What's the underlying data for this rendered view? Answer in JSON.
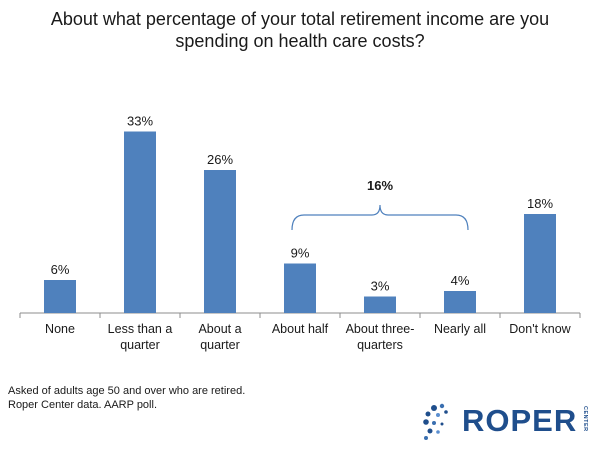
{
  "chart_data": {
    "type": "bar",
    "title": "About what percentage of your total retirement income are you spending on health care costs?",
    "categories": [
      "None",
      "Less than a quarter",
      "About a quarter",
      "About half",
      "About three-quarters",
      "Nearly all",
      "Don't know"
    ],
    "category_lines": [
      [
        "None"
      ],
      [
        "Less than a",
        "quarter"
      ],
      [
        "About a",
        "quarter"
      ],
      [
        "About half"
      ],
      [
        "About three-",
        "quarters"
      ],
      [
        "Nearly all"
      ],
      [
        "Don't know"
      ]
    ],
    "values": [
      6,
      33,
      26,
      9,
      3,
      4,
      18
    ],
    "value_labels": [
      "6%",
      "33%",
      "26%",
      "9%",
      "3%",
      "4%",
      "18%"
    ],
    "ylim": [
      0,
      40
    ],
    "grid": false,
    "bar_color": "#4f81bd",
    "group_annotation": {
      "label": "16%",
      "span": [
        "About half",
        "Nearly all"
      ]
    }
  },
  "footnotes": [
    "Asked of adults age 50 and over who are retired.",
    "Roper Center data. AARP poll."
  ],
  "logo": {
    "text": "ROPER",
    "side_text": "CENTER",
    "color": "#1f4e8c"
  }
}
